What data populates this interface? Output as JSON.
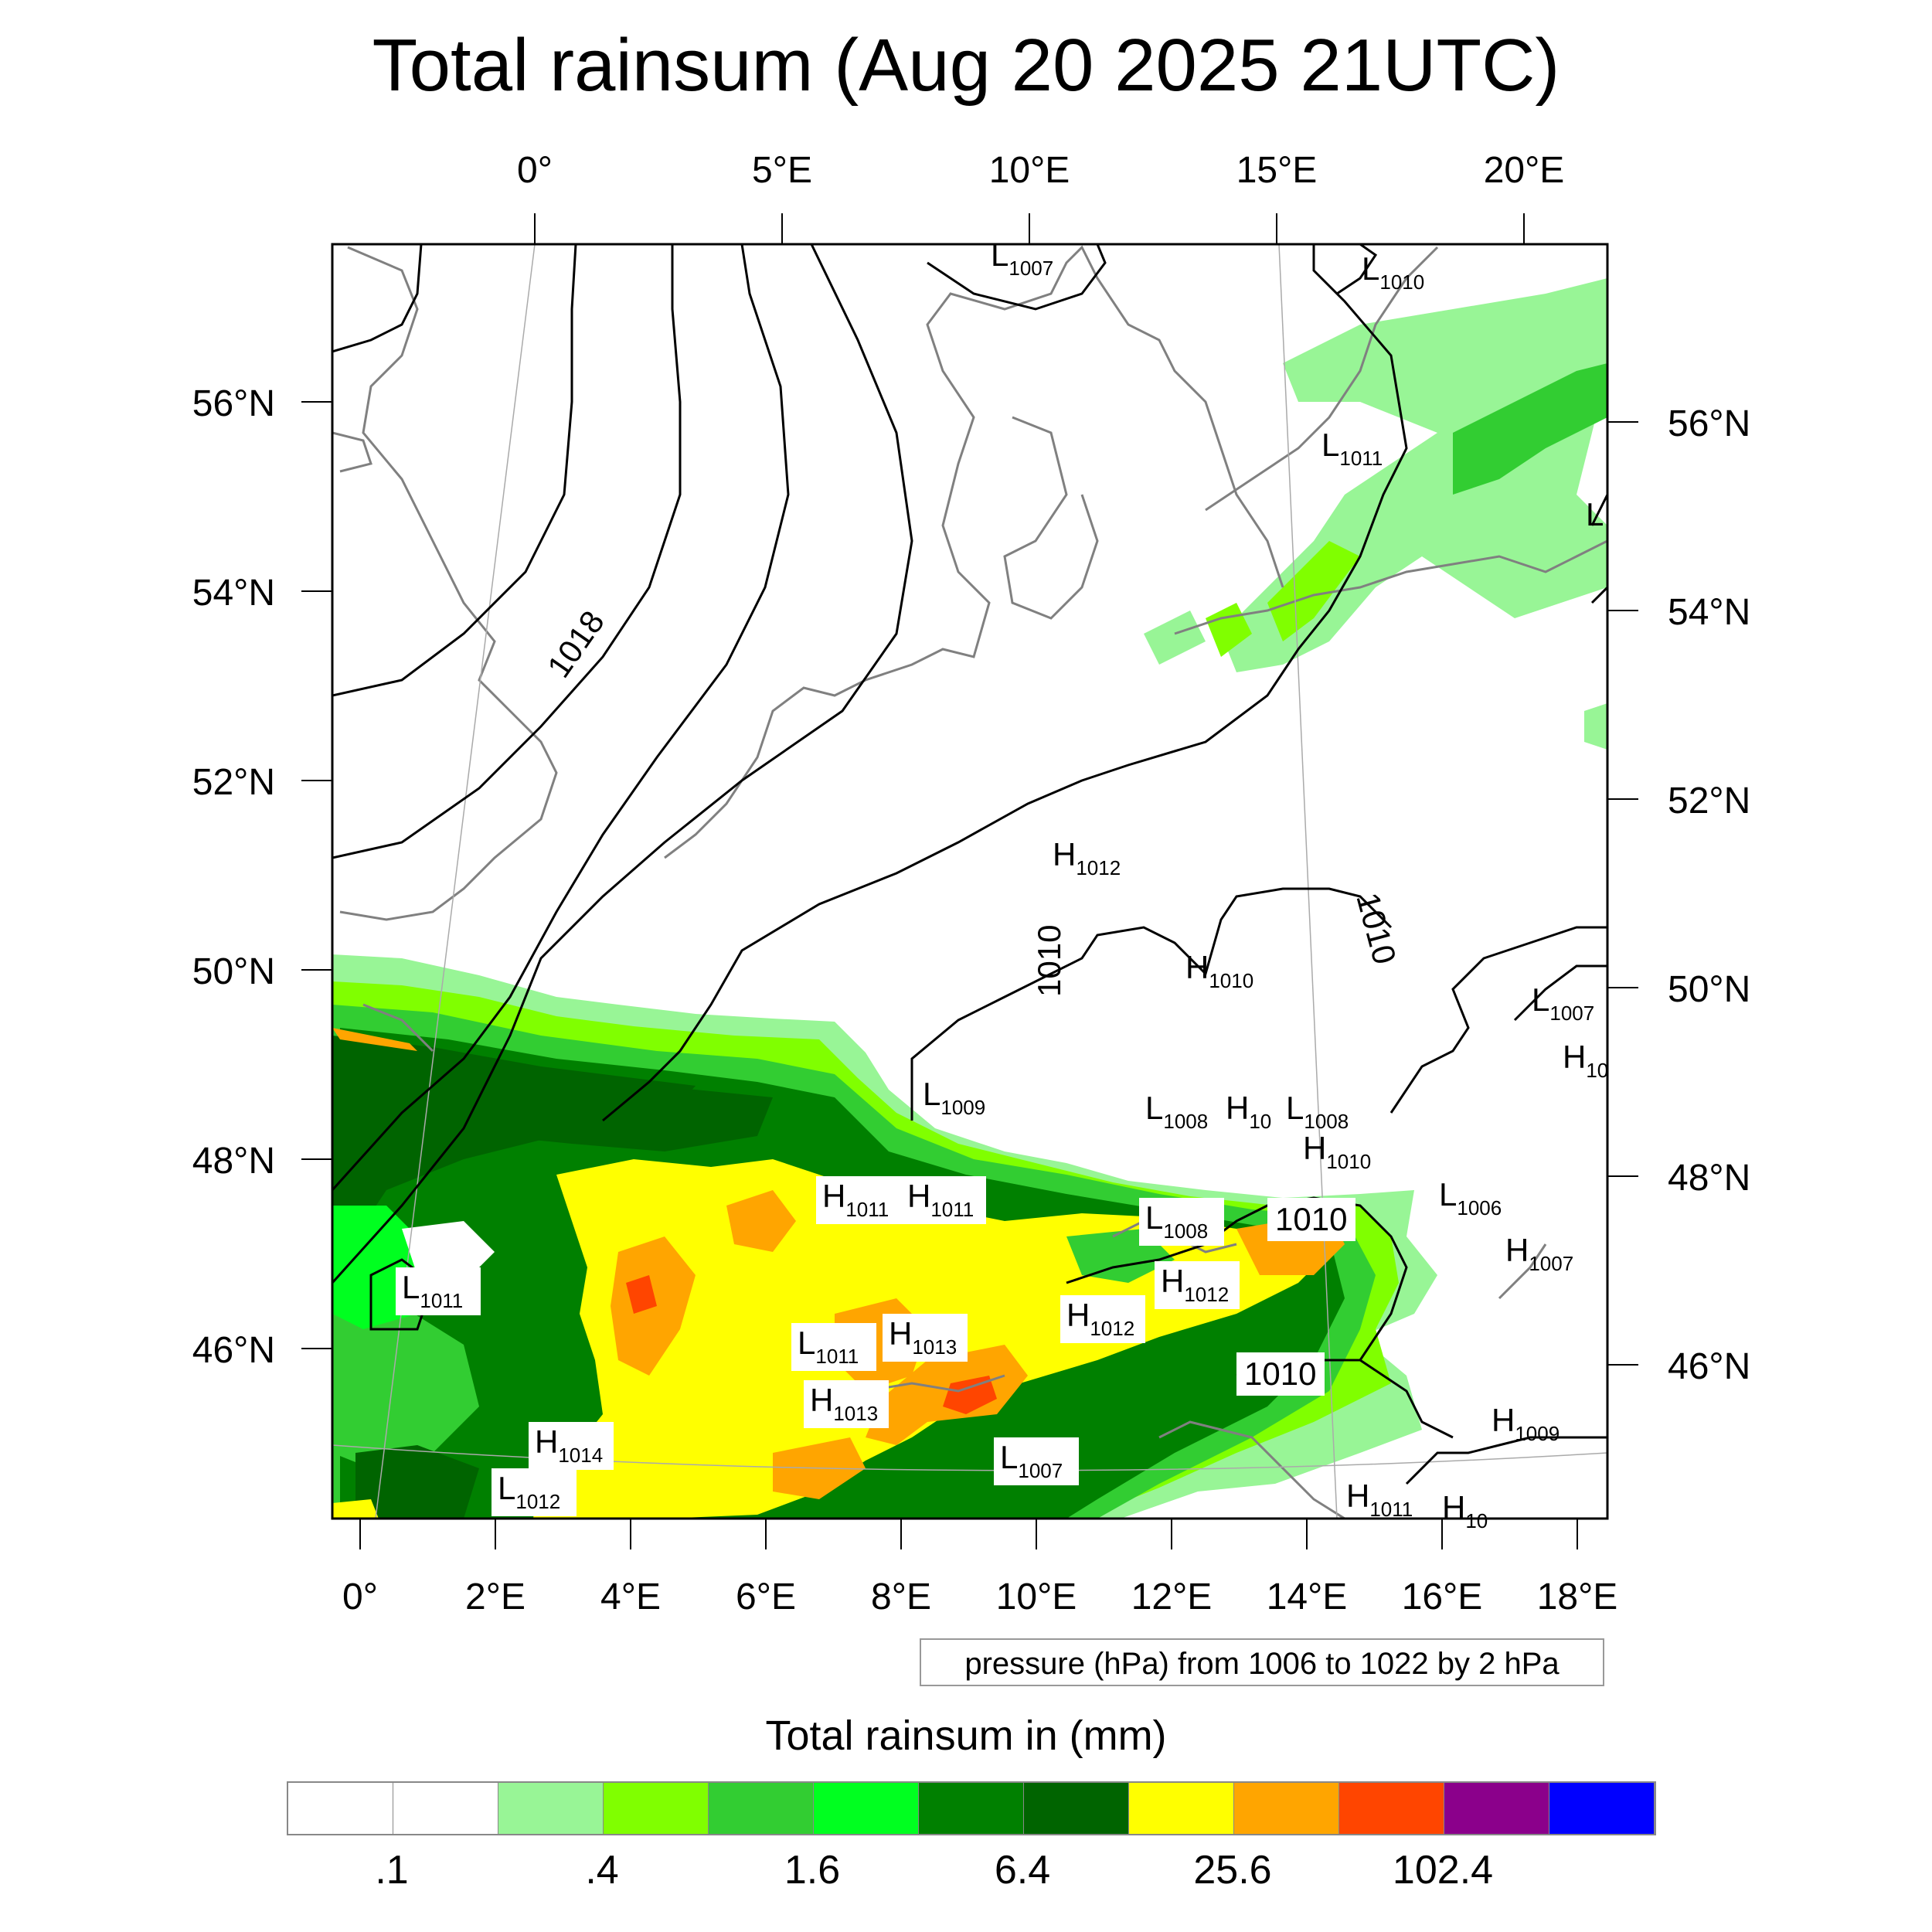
{
  "title": "Total rainsum (Aug 20 2025 21UTC)",
  "top_lon_labels": [
    "0°",
    "5°E",
    "10°E",
    "15°E",
    "20°E"
  ],
  "left_lat_labels": [
    "56°N",
    "54°N",
    "52°N",
    "50°N",
    "48°N",
    "46°N"
  ],
  "right_lat_labels": [
    "56°N",
    "54°N",
    "52°N",
    "50°N",
    "48°N",
    "46°N"
  ],
  "bottom_lon_labels": [
    "0°",
    "2°E",
    "4°E",
    "6°E",
    "8°E",
    "10°E",
    "12°E",
    "14°E",
    "16°E",
    "18°E"
  ],
  "isobar_labels": [
    "1018",
    "1010",
    "1010",
    "1010",
    "1010"
  ],
  "pressure_centers": [
    {
      "letter": "L",
      "value": "1007"
    },
    {
      "letter": "L",
      "value": "1010"
    },
    {
      "letter": "L",
      "value": "1011"
    },
    {
      "letter": "L",
      "value": ""
    },
    {
      "letter": "H",
      "value": "1012"
    },
    {
      "letter": "H",
      "value": "1010"
    },
    {
      "letter": "L",
      "value": "1007"
    },
    {
      "letter": "H",
      "value": "10"
    },
    {
      "letter": "L",
      "value": "1009"
    },
    {
      "letter": "L",
      "value": "1008"
    },
    {
      "letter": "H",
      "value": "10"
    },
    {
      "letter": "L",
      "value": "1008"
    },
    {
      "letter": "H",
      "value": "1010"
    },
    {
      "letter": "H",
      "value": "1011"
    },
    {
      "letter": "H",
      "value": "1011"
    },
    {
      "letter": "L",
      "value": "1008"
    },
    {
      "letter": "L",
      "value": "1006"
    },
    {
      "letter": "H",
      "value": "1007"
    },
    {
      "letter": "L",
      "value": "1011"
    },
    {
      "letter": "H",
      "value": "1012"
    },
    {
      "letter": "H",
      "value": "1012"
    },
    {
      "letter": "L",
      "value": "1011"
    },
    {
      "letter": "H",
      "value": "1013"
    },
    {
      "letter": "H",
      "value": "1013"
    },
    {
      "letter": "H",
      "value": "1014"
    },
    {
      "letter": "L",
      "value": "1012"
    },
    {
      "letter": "L",
      "value": "1007"
    },
    {
      "letter": "H",
      "value": "1009"
    },
    {
      "letter": "H",
      "value": "1011"
    },
    {
      "letter": "H",
      "value": "10"
    }
  ],
  "contour_note": "pressure (hPa) from 1006 to 1022 by 2 hPa",
  "colorbar": {
    "title": "Total rainsum in (mm)",
    "colors": [
      "#ffffff",
      "#ffffff",
      "#98f596",
      "#80ff00",
      "#32cd32",
      "#00ff20",
      "#008000",
      "#006400",
      "#ffff00",
      "#ffa500",
      "#ff4500",
      "#8b008b",
      "#0000ff"
    ],
    "labels": [
      ".1",
      ".4",
      "1.6",
      "6.4",
      "25.6",
      "102.4"
    ]
  }
}
